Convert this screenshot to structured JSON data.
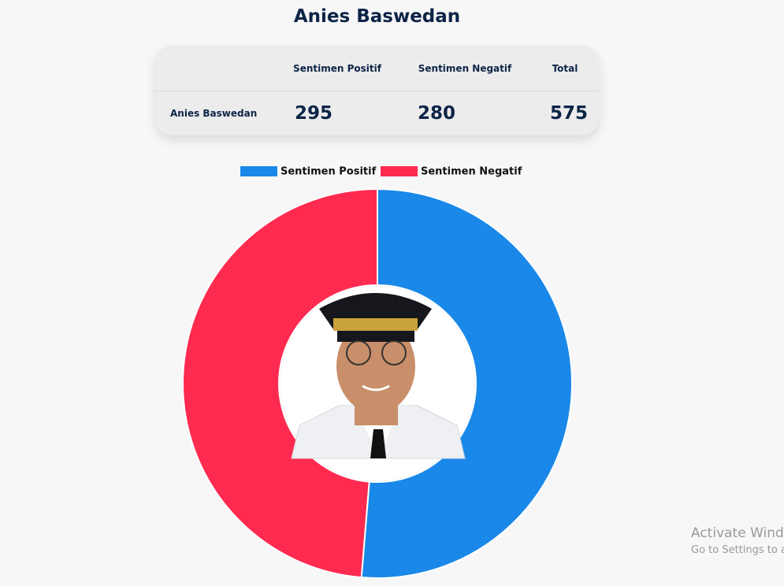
{
  "header": {
    "title": "Anies Baswedan"
  },
  "table": {
    "columns": [
      "Sentimen Positif",
      "Sentimen Negatif",
      "Total"
    ],
    "rows": [
      [
        "Anies Baswedan",
        295,
        280,
        575
      ]
    ]
  },
  "chart_data": {
    "type": "doughnut",
    "categories": [
      "Sentimen Positif",
      "Sentimen Negatif"
    ],
    "values": [
      295,
      280
    ],
    "colors": [
      "#1a88e8",
      "#ff2a50"
    ],
    "legend": "top"
  },
  "watermark": {
    "line1": "Activate Wind",
    "line2": "Go to Settings to a"
  }
}
